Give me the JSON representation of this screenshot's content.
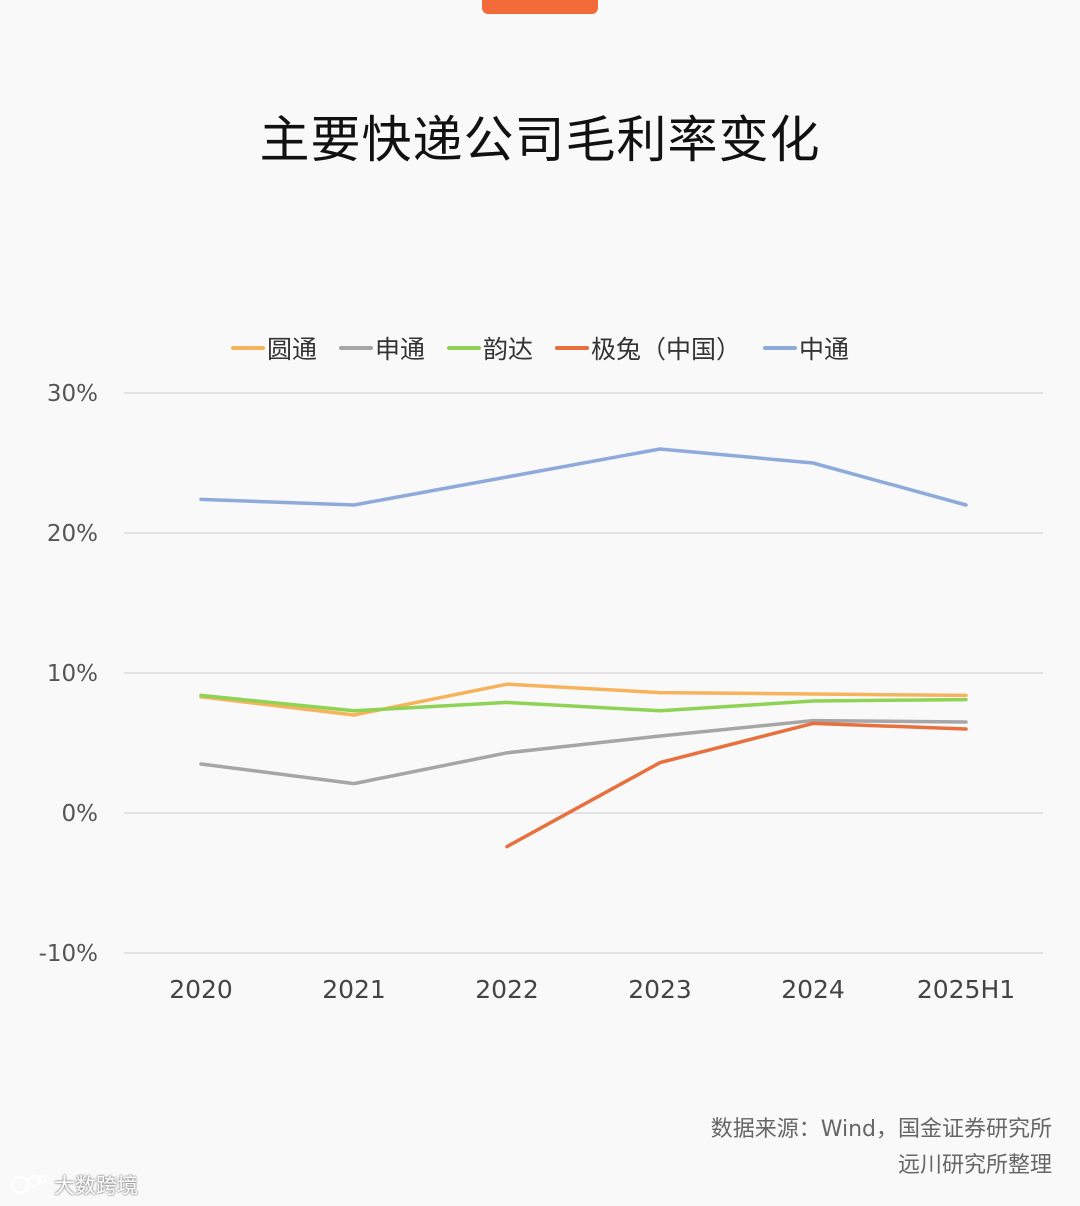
{
  "header": {
    "title": "主要快递公司毛利率变化"
  },
  "chart_data": {
    "type": "line",
    "title": "主要快递公司毛利率变化",
    "categories": [
      "2020",
      "2021",
      "2022",
      "2023",
      "2024",
      "2025H1"
    ],
    "y_ticks": [
      "30%",
      "20%",
      "10%",
      "0%",
      "-10%"
    ],
    "ylim": [
      -10,
      30
    ],
    "grid": true,
    "legend_position": "top-center",
    "series": [
      {
        "name": "圆通",
        "color": "#f7b35b",
        "values": [
          8.3,
          7.0,
          9.2,
          8.6,
          8.5,
          8.4
        ]
      },
      {
        "name": "申通",
        "color": "#a6a6a6",
        "values": [
          3.5,
          2.1,
          4.3,
          5.5,
          6.6,
          6.5
        ]
      },
      {
        "name": "韵达",
        "color": "#8ed354",
        "values": [
          8.4,
          7.3,
          7.9,
          7.3,
          8.0,
          8.1
        ]
      },
      {
        "name": "极兔（中国）",
        "color": "#e8703d",
        "values": [
          null,
          null,
          -2.4,
          3.6,
          6.4,
          6.0
        ]
      },
      {
        "name": "中通",
        "color": "#8eaadb",
        "values": [
          22.4,
          22.0,
          24.0,
          26.0,
          25.0,
          22.0
        ]
      }
    ]
  },
  "footer": {
    "source_line1": "数据来源：Wind，国金证券研究所",
    "source_line2": "远川研究所整理",
    "watermark": "大数跨境"
  }
}
